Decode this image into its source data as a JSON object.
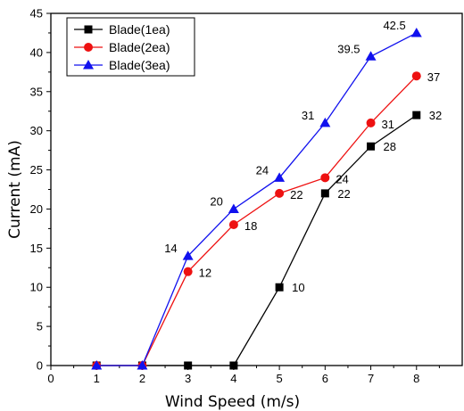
{
  "chart_data": {
    "type": "line",
    "title": "",
    "xlabel": "Wind Speed (m/s)",
    "ylabel": "Current (mA)",
    "xlim": [
      0,
      9
    ],
    "ylim": [
      0,
      45
    ],
    "xticks": [
      "0",
      "1",
      "2",
      "3",
      "4",
      "5",
      "6",
      "7",
      "8"
    ],
    "yticks": [
      "0",
      "5",
      "10",
      "15",
      "20",
      "25",
      "30",
      "35",
      "40",
      "45"
    ],
    "grid": false,
    "legend_position": "top-left",
    "x": [
      1,
      2,
      3,
      4,
      5,
      6,
      7,
      8
    ],
    "series": [
      {
        "name": "Blade(1ea)",
        "color": "#000000",
        "marker": "square",
        "values": [
          0,
          0,
          0,
          0,
          10,
          22,
          28,
          32
        ],
        "labels": [
          "",
          "",
          "",
          "",
          "10",
          "22",
          "28",
          "32"
        ]
      },
      {
        "name": "Blade(2ea)",
        "color": "#ee1111",
        "marker": "circle",
        "values": [
          0,
          0,
          12,
          18,
          22,
          24,
          31,
          37
        ],
        "labels": [
          "",
          "",
          "12",
          "18",
          "22",
          "24",
          "31",
          "37"
        ]
      },
      {
        "name": "Blade(3ea)",
        "color": "#1111ee",
        "marker": "triangle",
        "values": [
          0,
          0,
          14,
          20,
          24,
          31,
          39.5,
          42.5
        ],
        "labels": [
          "",
          "",
          "14",
          "20",
          "24",
          "31",
          "39.5",
          "42.5"
        ]
      }
    ]
  }
}
